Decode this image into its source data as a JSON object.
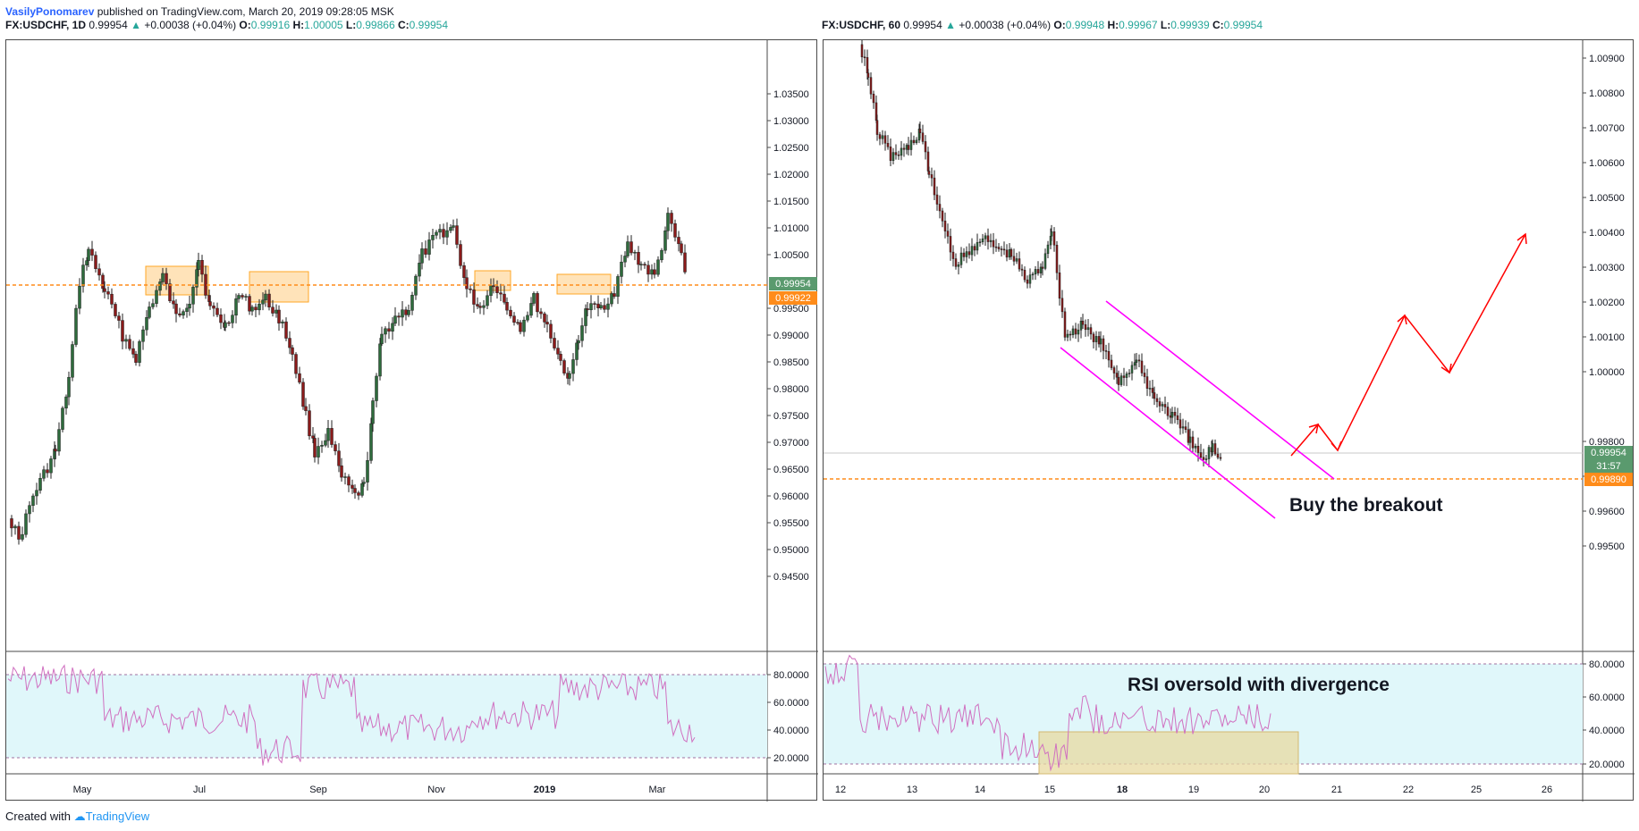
{
  "publish": {
    "author": "VasilyPonomarev",
    "text": "published on TradingView.com, March 20, 2019 09:28:05 MSK"
  },
  "left": {
    "header": {
      "symbol": "FX:USDCHF, 1D",
      "last": "0.99954",
      "change": "+0.00038 (+0.04%)",
      "o_label": "O:",
      "o": "0.99916",
      "h_label": "H:",
      "h": "1.00005",
      "l_label": "L:",
      "l": "0.99866",
      "c_label": "C:",
      "c": "0.99954"
    },
    "price_ticks": [
      "1.03500",
      "1.03000",
      "1.02500",
      "1.02000",
      "1.01500",
      "1.01000",
      "1.00500",
      "0.99500",
      "0.99000",
      "0.98500",
      "0.98000",
      "0.97500",
      "0.97000",
      "0.96500",
      "0.96000",
      "0.95500",
      "0.95000",
      "0.94500"
    ],
    "rsi_ticks": [
      "80.0000",
      "60.0000",
      "40.0000",
      "20.0000"
    ],
    "time_labels": [
      "May",
      "Jul",
      "Sep",
      "Nov",
      "2019",
      "Mar"
    ],
    "price_badge": "0.99954",
    "level_badge": "0.99922"
  },
  "right": {
    "header": {
      "symbol": "FX:USDCHF, 60",
      "last": "0.99954",
      "change": "+0.00038 (+0.04%)",
      "o_label": "O:",
      "o": "0.99948",
      "h_label": "H:",
      "h": "0.99967",
      "l_label": "L:",
      "l": "0.99939",
      "c_label": "C:",
      "c": "0.99954"
    },
    "price_ticks": [
      "1.00900",
      "1.00800",
      "1.00700",
      "1.00600",
      "1.00500",
      "1.00400",
      "1.00300",
      "1.00200",
      "1.00100",
      "1.00000",
      "0.99800",
      "0.99700",
      "0.99600",
      "0.99500"
    ],
    "rsi_ticks": [
      "80.0000",
      "60.0000",
      "40.0000",
      "20.0000"
    ],
    "time_labels": [
      "12",
      "13",
      "14",
      "15",
      "18",
      "19",
      "20",
      "21",
      "22",
      "25",
      "26"
    ],
    "price_badge": "0.99954",
    "countdown_badge": "31:57",
    "level_badge": "0.99890",
    "annotation_breakout": "Buy the breakout",
    "annotation_rsi": "RSI oversold with divergence"
  },
  "footer": {
    "created": "Created with",
    "brand": "TradingView"
  },
  "colors": {
    "up_candle": "#2e6b3c",
    "down_candle": "#8b1a1a",
    "level_line": "#ff8c1a",
    "channel": "#ff00ff",
    "arrow": "#ff0000",
    "rsi_line": "#d070c0",
    "rsi_band": "#e0f7fa",
    "zone": "#ffcc80",
    "badge_green": "#5a9a6e",
    "badge_orange": "#ff8c1a"
  }
}
